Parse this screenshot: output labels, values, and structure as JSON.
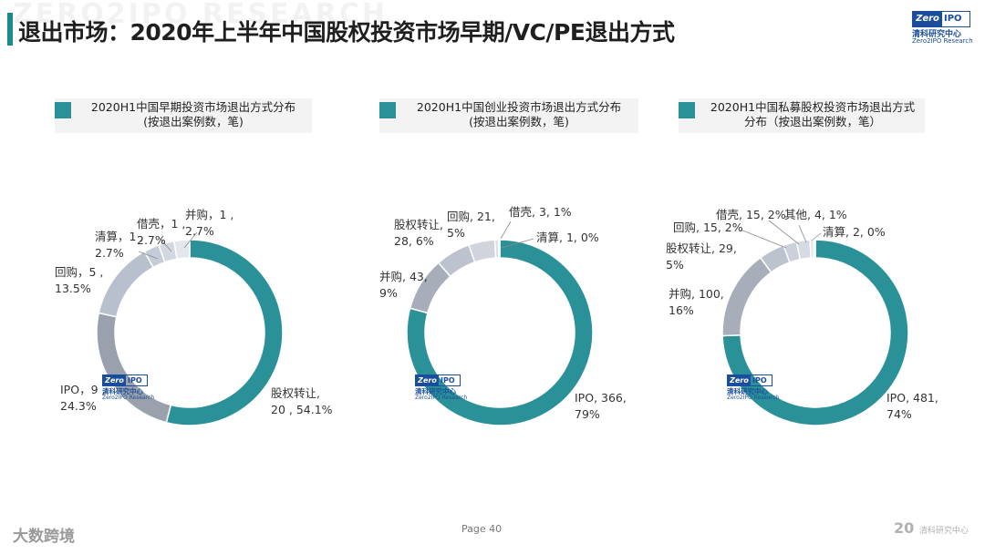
{
  "header": {
    "title": "退出市场：2020年上半年中国股权投资市场早期/VC/PE退出方式",
    "watermark": "ZERO2IPO RESEARCH"
  },
  "logo": {
    "zero": "Zero",
    "ipo": "IPO",
    "cn": "清科研究中心",
    "en": "Zero2IPO Research"
  },
  "colors": {
    "accent": "#1b8a8c",
    "primary_slice": "#2a9199"
  },
  "chart_data": [
    {
      "type": "pie",
      "legend": [
        "2020H1中国早期投资市场退出方式分布",
        "(按退出案例数，笔)"
      ],
      "slices": [
        {
          "name": "股权转让",
          "value": 20,
          "label": [
            "股权转让,",
            "20 , 54.1%"
          ],
          "color": "#2a9199"
        },
        {
          "name": "IPO",
          "value": 9,
          "label": [
            "IPO，9 ,",
            "24.3%"
          ],
          "color": "#9aa0ac"
        },
        {
          "name": "回购",
          "value": 5,
          "label": [
            "回购，5 ,",
            "13.5%"
          ],
          "color": "#b8bfcd"
        },
        {
          "name": "清算",
          "value": 1,
          "label": [
            "清算，1 ,",
            "2.7%"
          ],
          "color": "#c6ccd7"
        },
        {
          "name": "借壳",
          "value": 1,
          "label": [
            "借壳，1 ,",
            "2.7%"
          ],
          "color": "#d3d8e0"
        },
        {
          "name": "并购",
          "value": 1,
          "label": [
            "并购，1 ,",
            "2.7%"
          ],
          "color": "#e3e6eb"
        }
      ]
    },
    {
      "type": "pie",
      "legend": [
        "2020H1中国创业投资市场退出方式分布",
        "(按退出案例数，笔)"
      ],
      "slices": [
        {
          "name": "IPO",
          "value": 366,
          "label": [
            "IPO, 366,",
            "79%"
          ],
          "color": "#2a9199"
        },
        {
          "name": "并购",
          "value": 43,
          "label": [
            "并购, 43,",
            "9%"
          ],
          "color": "#a7adb9"
        },
        {
          "name": "股权转让",
          "value": 28,
          "label": [
            "股权转让,",
            "28, 6%"
          ],
          "color": "#bcc2ce"
        },
        {
          "name": "回购",
          "value": 21,
          "label": [
            "回购, 21,",
            "5%"
          ],
          "color": "#cfd4dd"
        },
        {
          "name": "借壳",
          "value": 3,
          "label": [
            "借壳, 3, 1%"
          ],
          "color": "#dde1e7"
        },
        {
          "name": "清算",
          "value": 1,
          "label": [
            "清算, 1, 0%"
          ],
          "color": "#ebeef1"
        }
      ]
    },
    {
      "type": "pie",
      "legend": [
        "2020H1中国私募股权投资市场退出方式",
        "分布（按退出案例数，笔）"
      ],
      "slices": [
        {
          "name": "IPO",
          "value": 481,
          "label": [
            "IPO, 481,",
            "74%"
          ],
          "color": "#2a9199"
        },
        {
          "name": "并购",
          "value": 100,
          "label": [
            "并购, 100,",
            "16%"
          ],
          "color": "#a7adb9"
        },
        {
          "name": "股权转让",
          "value": 29,
          "label": [
            "股权转让, 29,",
            "5%"
          ],
          "color": "#bcc2ce"
        },
        {
          "name": "回购",
          "value": 15,
          "label": [
            "回购, 15, 2%"
          ],
          "color": "#cbd0da"
        },
        {
          "name": "借壳",
          "value": 15,
          "label": [
            "借壳, 15, 2%"
          ],
          "color": "#d6dae2"
        },
        {
          "name": "其他",
          "value": 4,
          "label": [
            "其他, 4, 1%"
          ],
          "color": "#e1e4ea"
        },
        {
          "name": "清算",
          "value": 2,
          "label": [
            "清算, 2, 0%"
          ],
          "color": "#eceef2"
        }
      ]
    }
  ],
  "footer": {
    "page": "Page 40",
    "watermark": "大数跨境",
    "brand_num": "20",
    "brand_text": "清科研究中心"
  }
}
